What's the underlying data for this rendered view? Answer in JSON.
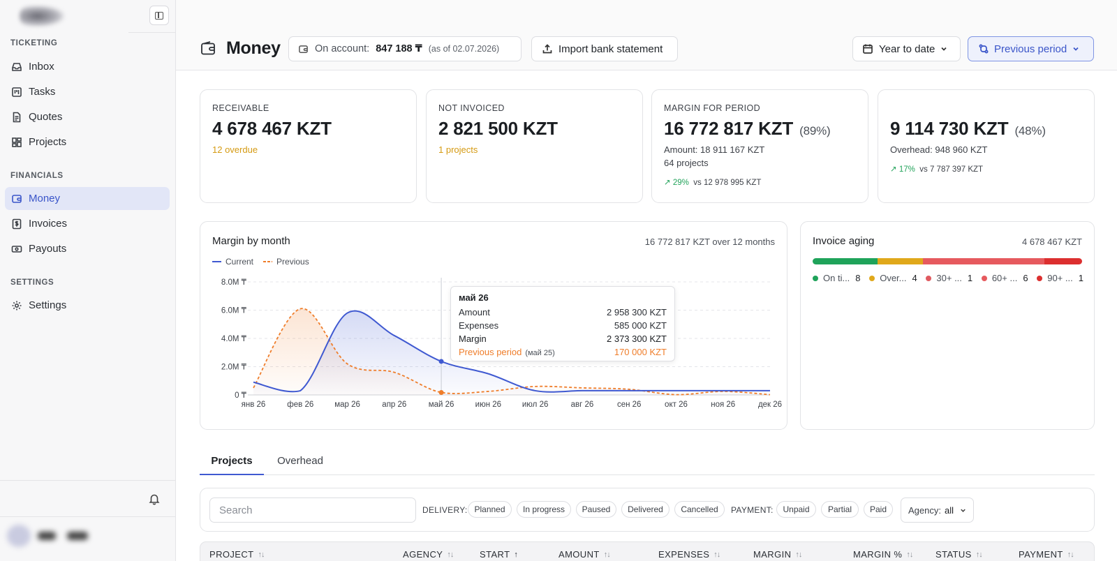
{
  "sidebar": {
    "sections": [
      {
        "title": "TICKETING",
        "items": [
          {
            "label": "Inbox",
            "icon": "inbox-icon"
          },
          {
            "label": "Tasks",
            "icon": "kanban-icon"
          },
          {
            "label": "Quotes",
            "icon": "document-icon"
          },
          {
            "label": "Projects",
            "icon": "grid-icon"
          }
        ]
      },
      {
        "title": "FINANCIALS",
        "items": [
          {
            "label": "Money",
            "icon": "wallet-icon",
            "active": true
          },
          {
            "label": "Invoices",
            "icon": "dollar-doc-icon"
          },
          {
            "label": "Payouts",
            "icon": "cash-icon"
          }
        ]
      },
      {
        "title": "SETTINGS",
        "items": [
          {
            "label": "Settings",
            "icon": "gear-icon"
          }
        ]
      }
    ]
  },
  "header": {
    "title": "Money",
    "account_label": "On account:",
    "account_value": "847 188 ₸",
    "account_asof": "(as of 02.07.2026)",
    "import_label": "Import bank statement",
    "period_label": "Year to date",
    "compare_label": "Previous period"
  },
  "cards": {
    "receivable": {
      "label": "RECEIVABLE",
      "value": "4 678 467 KZT",
      "note": "12 overdue"
    },
    "not_invoiced": {
      "label": "NOT INVOICED",
      "value": "2 821 500 KZT",
      "note": "1 projects"
    },
    "margin": {
      "label": "MARGIN FOR PERIOD",
      "value": "16 772 817 KZT",
      "pct": "(89%)",
      "amount": "Amount: 18 911 167 KZT",
      "projects": "64 projects",
      "trend": "29%",
      "trend_vs": "vs 12 978 995 KZT"
    },
    "net": {
      "value": "9 114 730 KZT",
      "pct": "(48%)",
      "overhead": "Overhead: 948 960 KZT",
      "trend": "17%",
      "trend_vs": "vs 7 787 397 KZT"
    }
  },
  "margin_chart": {
    "title": "Margin by month",
    "meta": "16 772 817 KZT over 12 months",
    "legend_current": "Current",
    "legend_previous": "Previous",
    "tooltip": {
      "title": "май 26",
      "amount_label": "Amount",
      "amount_value": "2 958 300 KZT",
      "expenses_label": "Expenses",
      "expenses_value": "585 000 KZT",
      "margin_label": "Margin",
      "margin_value": "2 373 300 KZT",
      "prev_label": "Previous period",
      "prev_sub": "(май 25)",
      "prev_value": "170 000 KZT"
    }
  },
  "chart_data": {
    "type": "area",
    "title": "Margin by month",
    "categories": [
      "янв 26",
      "фев 26",
      "мар 26",
      "апр 26",
      "май 26",
      "июн 26",
      "июл 26",
      "авг 26",
      "сен 26",
      "окт 26",
      "ноя 26",
      "дек 26"
    ],
    "y_ticks": [
      "0 ₸",
      "2.0M ₸",
      "4.0M ₸",
      "6.0M ₸",
      "8.0M ₸"
    ],
    "ylim": [
      0,
      8000000
    ],
    "series": [
      {
        "name": "Current",
        "color": "#3f59d1",
        "values": [
          900000,
          300000,
          5800000,
          4200000,
          2373300,
          1500000,
          300000,
          300000,
          300000,
          300000,
          300000,
          300000
        ]
      },
      {
        "name": "Previous",
        "color": "#ef7d2a",
        "values": [
          500000,
          6100000,
          2200000,
          1600000,
          170000,
          250000,
          600000,
          500000,
          400000,
          20000,
          250000,
          20000
        ]
      }
    ],
    "grid": true,
    "legend": "top-left"
  },
  "aging": {
    "title": "Invoice aging",
    "total": "4 678 467 KZT",
    "buckets": [
      {
        "label": "On ti...",
        "count": "8",
        "color": "#1fa35a",
        "share": 0.24
      },
      {
        "label": "Over...",
        "count": "4",
        "color": "#e0a81b",
        "share": 0.17
      },
      {
        "label": "30+ ...",
        "count": "1",
        "color": "#e05a60",
        "share": 0.0
      },
      {
        "label": "60+ ...",
        "count": "6",
        "color": "#e65a5e",
        "share": 0.45
      },
      {
        "label": "90+ ...",
        "count": "1",
        "color": "#dc2f2f",
        "share": 0.14
      }
    ]
  },
  "tabs": [
    {
      "label": "Projects",
      "active": true
    },
    {
      "label": "Overhead"
    }
  ],
  "filters": {
    "search_placeholder": "Search",
    "delivery_label": "DELIVERY:",
    "delivery": [
      "Planned",
      "In progress",
      "Paused",
      "Delivered",
      "Cancelled"
    ],
    "payment_label": "PAYMENT:",
    "payment": [
      "Unpaid",
      "Partial",
      "Paid"
    ],
    "agency_label": "Agency:",
    "agency_value": "all"
  },
  "table": {
    "columns": [
      "PROJECT",
      "AGENCY",
      "START",
      "AMOUNT",
      "EXPENSES",
      "MARGIN",
      "MARGIN %",
      "STATUS",
      "PAYMENT"
    ],
    "sorted_column": "START"
  }
}
